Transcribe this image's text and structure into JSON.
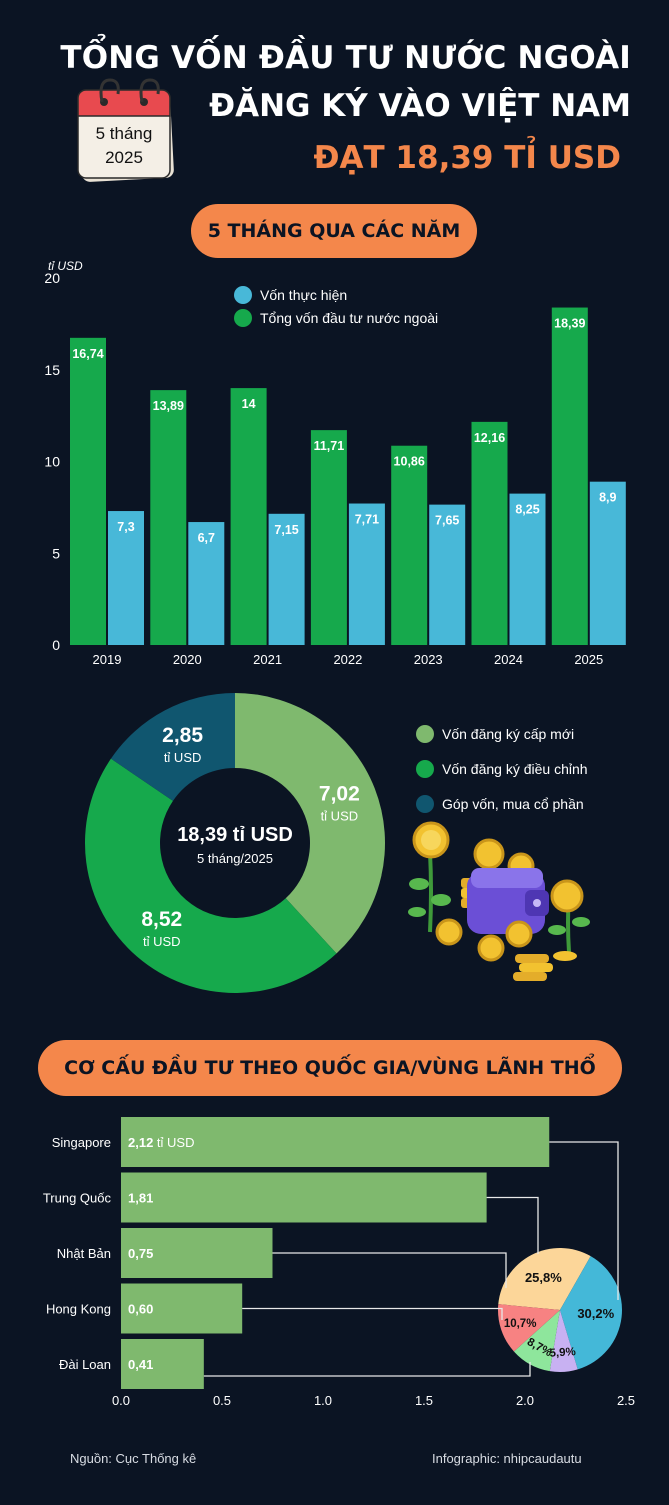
{
  "header": {
    "line1": "TỔNG VỐN ĐẦU TƯ NƯỚC NGOÀI",
    "line2": "ĐĂNG KÝ VÀO VIỆT NAM",
    "line3": "ĐẠT 18,39 TỈ USD",
    "calendar_line1": "5 tháng",
    "calendar_line2": "2025"
  },
  "section1": {
    "title": "5 THÁNG QUA CÁC NĂM"
  },
  "section2": {
    "title": "CƠ CẤU ĐẦU TƯ THEO QUỐC GIA/VÙNG LÃNH THỔ"
  },
  "colors": {
    "green": "#16a94c",
    "blue": "#48b8d8",
    "light_green": "#7fb96e",
    "dark_teal": "#10566f",
    "orange": "#f4874b",
    "background": "#0b1423"
  },
  "chart_data": [
    {
      "type": "bar",
      "ylabel": "tỉ USD",
      "ylim": [
        0,
        20
      ],
      "yticks": [
        "0",
        "5",
        "10",
        "15",
        "20"
      ],
      "categories": [
        "2019",
        "2020",
        "2021",
        "2022",
        "2023",
        "2024",
        "2025"
      ],
      "legend_position": "top-right",
      "series": [
        {
          "name": "Tổng vốn đầu tư nước ngoài",
          "color": "#16a94c",
          "values": [
            16.74,
            13.89,
            14,
            11.71,
            10.86,
            12.16,
            18.39
          ],
          "labels": [
            "16,74",
            "13,89",
            "14",
            "11,71",
            "10,86",
            "12,16",
            "18,39"
          ]
        },
        {
          "name": "Vốn thực hiện",
          "color": "#48b8d8",
          "values": [
            7.3,
            6.7,
            7.15,
            7.71,
            7.65,
            8.25,
            8.9
          ],
          "labels": [
            "7,3",
            "6,7",
            "7,15",
            "7,71",
            "7,65",
            "8,25",
            "8,9"
          ]
        }
      ],
      "legend_order": [
        "Vốn thực hiện",
        "Tổng vốn đầu tư nước ngoài"
      ]
    },
    {
      "type": "pie",
      "center_value": "18,39 tỉ USD",
      "center_sub": "5 tháng/2025",
      "unit": "tỉ USD",
      "slices": [
        {
          "name": "Vốn đăng ký cấp mới",
          "value": 7.02,
          "label": "7,02",
          "color": "#7fb96e"
        },
        {
          "name": "Vốn đăng ký điều chỉnh",
          "value": 8.52,
          "label": "8,52",
          "color": "#16a94c"
        },
        {
          "name": "Góp vốn, mua cổ phần",
          "value": 2.85,
          "label": "2,85",
          "color": "#10566f"
        }
      ]
    },
    {
      "type": "bar",
      "orientation": "horizontal",
      "xlim": [
        0,
        2.5
      ],
      "xticks": [
        "0.0",
        "0.5",
        "1.0",
        "1.5",
        "2.0",
        "2.5"
      ],
      "categories": [
        "Singapore",
        "Trung Quốc",
        "Nhật Bản",
        "Hong Kong",
        "Đài Loan"
      ],
      "values": [
        2.12,
        1.81,
        0.75,
        0.6,
        0.41
      ],
      "labels": [
        "2,12",
        "1,81",
        "0,75",
        "0,60",
        "0,41"
      ],
      "first_label_suffix": "tỉ USD",
      "color": "#7fb96e"
    },
    {
      "type": "pie",
      "slices": [
        {
          "value": 25.8,
          "label": "25,8%",
          "color": "#fcd699"
        },
        {
          "value": 30.2,
          "label": "30,2%",
          "color": "#44b8d8"
        },
        {
          "value": 5.9,
          "label": "5,9%",
          "color": "#c8b1f2"
        },
        {
          "value": 8.7,
          "label": "8,7%",
          "color": "#8ee69c"
        },
        {
          "value": 10.7,
          "label": "10,7%",
          "color": "#f78282"
        }
      ]
    }
  ],
  "footer": {
    "source": "Nguồn: Cục Thống kê",
    "credit": "Infographic: nhipcaudautu"
  }
}
